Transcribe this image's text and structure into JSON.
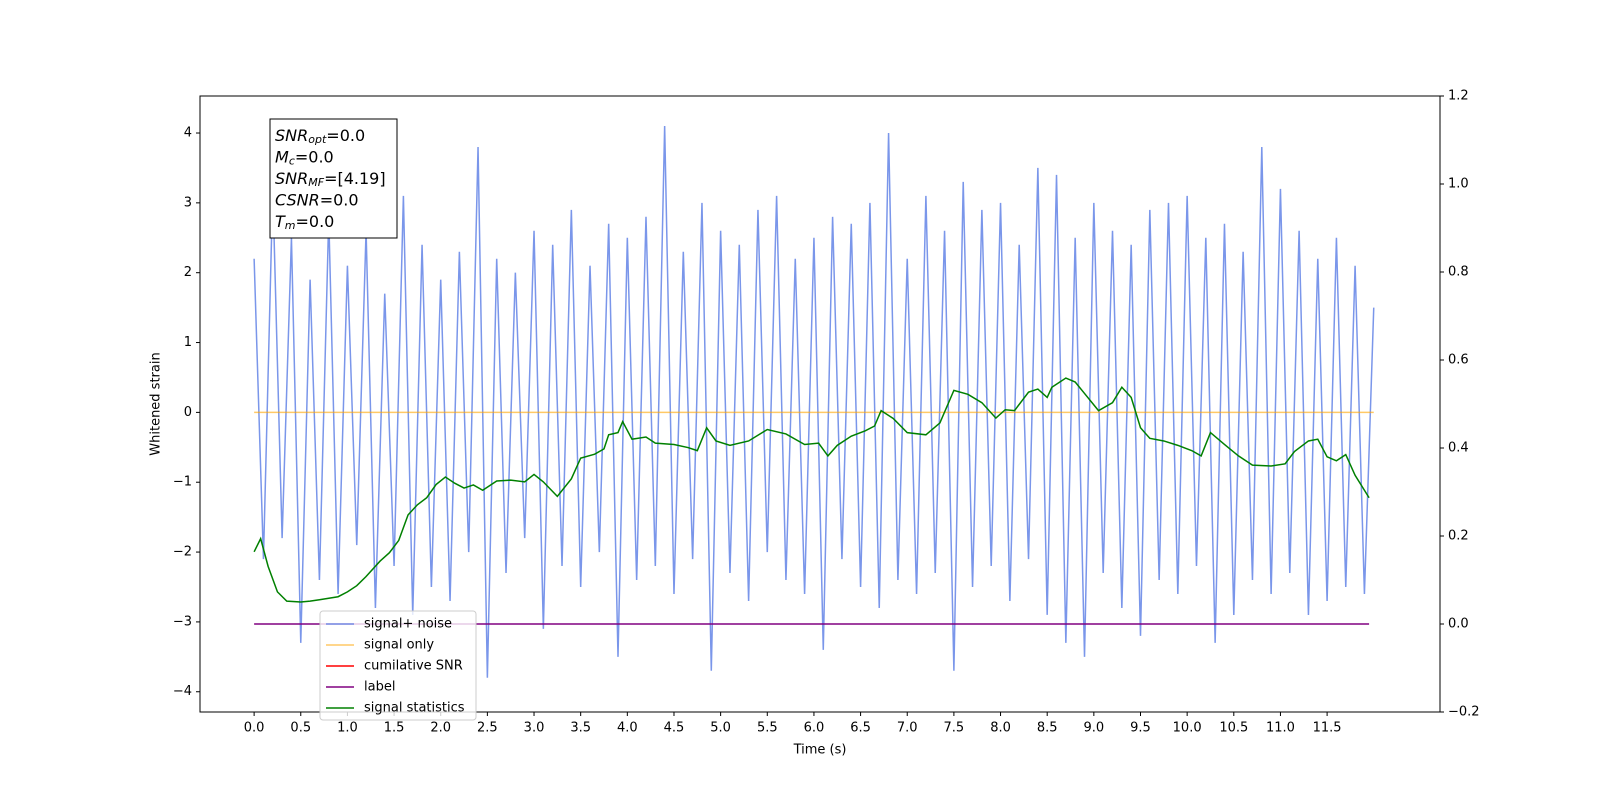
{
  "chart_data": {
    "type": "line",
    "xlabel": "Time (s)",
    "ylabel": "Whitened strain",
    "xlim": [
      -0.58,
      12.71
    ],
    "ylim": [
      -4.29,
      4.53
    ],
    "y2lim": [
      -0.2,
      1.2
    ],
    "xticks": [
      {
        "value": 0,
        "label": "0.0"
      },
      0.5,
      {
        "value": 1,
        "label": "1.0"
      },
      1.5,
      {
        "value": 2,
        "label": "2.0"
      },
      2.5,
      {
        "value": 3,
        "label": "3.0"
      },
      3.5,
      {
        "value": 4,
        "label": "4.0"
      },
      4.5,
      {
        "value": 5,
        "label": "5.0"
      },
      5.5,
      {
        "value": 6,
        "label": "6.0"
      },
      6.5,
      {
        "value": 7,
        "label": "7.0"
      },
      7.5,
      {
        "value": 8,
        "label": "8.0"
      },
      8.5,
      {
        "value": 9,
        "label": "9.0"
      },
      9.5,
      {
        "value": 10,
        "label": "10.0"
      },
      10.5,
      {
        "value": 11,
        "label": "11.0"
      },
      11.5
    ],
    "yticks": [
      {
        "value": -4,
        "label": "−4"
      },
      {
        "value": -3,
        "label": "−3"
      },
      {
        "value": -2,
        "label": "−2"
      },
      {
        "value": -1,
        "label": "−1"
      },
      0,
      1,
      2,
      3,
      4
    ],
    "y2ticks": [
      {
        "value": -0.2,
        "label": "−0.2"
      },
      {
        "value": 0,
        "label": "0.0"
      },
      0.2,
      0.4,
      0.6,
      0.8,
      {
        "value": 1,
        "label": "1.0"
      },
      1.2
    ],
    "annotations": [
      {
        "text": "SNR",
        "sub": "opt",
        "rest": "=0.0"
      },
      {
        "text": "M",
        "sub": "c",
        "rest": "=0.0"
      },
      {
        "text": "SNR",
        "sub": "MF",
        "rest": "=[4.19]"
      },
      {
        "text": "CSNR",
        "rest": "=0.0"
      },
      {
        "text": "T",
        "sub": "m",
        "rest": "=0.0"
      }
    ],
    "series": [
      {
        "name": "signal+ noise",
        "color": "#4169e1",
        "opacity": 0.7,
        "x": [
          0,
          0.1,
          0.2,
          0.3,
          0.4,
          0.5,
          0.6,
          0.7,
          0.8,
          0.9,
          1,
          1.1,
          1.2,
          1.3,
          1.4,
          1.5,
          1.6,
          1.7,
          1.8,
          1.9,
          2,
          2.1,
          2.2,
          2.3,
          2.4,
          2.5,
          2.6,
          2.7,
          2.8,
          2.9,
          3,
          3.1,
          3.2,
          3.3,
          3.4,
          3.5,
          3.6,
          3.7,
          3.8,
          3.9,
          4,
          4.1,
          4.2,
          4.3,
          4.4,
          4.5,
          4.6,
          4.7,
          4.8,
          4.9,
          5,
          5.1,
          5.2,
          5.3,
          5.4,
          5.5,
          5.6,
          5.7,
          5.8,
          5.9,
          6,
          6.1,
          6.2,
          6.3,
          6.4,
          6.5,
          6.6,
          6.7,
          6.8,
          6.9,
          7,
          7.1,
          7.2,
          7.3,
          7.4,
          7.5,
          7.6,
          7.7,
          7.8,
          7.9,
          8,
          8.1,
          8.2,
          8.3,
          8.4,
          8.5,
          8.6,
          8.7,
          8.8,
          8.9,
          9,
          9.1,
          9.2,
          9.3,
          9.4,
          9.5,
          9.6,
          9.7,
          9.8,
          9.9,
          10,
          10.1,
          10.2,
          10.3,
          10.4,
          10.5,
          10.6,
          10.7,
          10.8,
          10.9,
          11,
          11.1,
          11.2,
          11.3,
          11.4,
          11.5,
          11.6,
          11.7,
          11.8,
          11.9,
          12
        ],
        "values": [
          2.2,
          -2.1,
          3.2,
          -1.8,
          2.5,
          -3.3,
          1.9,
          -2.4,
          2.8,
          -2.6,
          2.1,
          -1.9,
          2.6,
          -2.8,
          1.7,
          -2.2,
          3.1,
          -2.9,
          2.4,
          -2.5,
          1.9,
          -2.7,
          2.3,
          -2.0,
          3.8,
          -3.8,
          2.2,
          -2.3,
          2.0,
          -1.8,
          2.6,
          -3.1,
          2.4,
          -2.2,
          2.9,
          -2.5,
          2.1,
          -2.0,
          2.7,
          -3.5,
          2.5,
          -2.4,
          2.8,
          -2.2,
          4.1,
          -2.6,
          2.3,
          -2.1,
          3.0,
          -3.7,
          2.6,
          -2.3,
          2.4,
          -2.7,
          2.9,
          -2.0,
          3.1,
          -2.4,
          2.2,
          -2.6,
          2.5,
          -3.4,
          2.8,
          -2.1,
          2.7,
          -2.5,
          3.0,
          -2.8,
          4.0,
          -2.4,
          2.2,
          -2.6,
          3.1,
          -2.3,
          2.6,
          -3.7,
          3.3,
          -2.5,
          2.9,
          -2.2,
          3.0,
          -2.7,
          2.4,
          -2.1,
          3.5,
          -2.9,
          3.4,
          -3.3,
          2.5,
          -3.5,
          3.0,
          -2.3,
          2.6,
          -2.8,
          2.4,
          -3.2,
          2.9,
          -2.4,
          3.0,
          -2.6,
          3.1,
          -2.2,
          2.5,
          -3.3,
          2.7,
          -2.9,
          2.3,
          -2.4,
          3.8,
          -2.6,
          3.2,
          -2.3,
          2.6,
          -2.9,
          2.2,
          -2.7,
          2.5,
          -2.5,
          2.1,
          -2.6,
          1.5
        ]
      },
      {
        "name": "signal only",
        "color": "#ffa500",
        "opacity": 0.6,
        "x": [
          0,
          12.0
        ],
        "values": [
          0,
          0
        ]
      },
      {
        "name": "cumilative SNR",
        "color": "#ff0000",
        "opacity": 1,
        "x": [],
        "values": []
      },
      {
        "name": "label",
        "color": "#800080",
        "opacity": 1,
        "axis": "y2",
        "x": [
          0,
          11.95
        ],
        "values": [
          0,
          0
        ]
      },
      {
        "name": "signal statistics",
        "color": "#008000",
        "opacity": 1,
        "axis": "y2",
        "x": [
          0,
          0.07,
          0.15,
          0.25,
          0.35,
          0.5,
          0.6,
          0.7,
          0.9,
          1.0,
          1.1,
          1.2,
          1.35,
          1.45,
          1.55,
          1.65,
          1.75,
          1.85,
          1.95,
          2.05,
          2.15,
          2.25,
          2.35,
          2.45,
          2.6,
          2.75,
          2.9,
          3.0,
          3.1,
          3.25,
          3.4,
          3.5,
          3.65,
          3.75,
          3.8,
          3.9,
          3.95,
          4.05,
          4.2,
          4.3,
          4.5,
          4.65,
          4.75,
          4.85,
          4.95,
          5.1,
          5.3,
          5.5,
          5.7,
          5.9,
          6.05,
          6.15,
          6.25,
          6.4,
          6.55,
          6.65,
          6.72,
          6.85,
          7.0,
          7.2,
          7.35,
          7.5,
          7.65,
          7.8,
          7.95,
          8.05,
          8.15,
          8.3,
          8.4,
          8.5,
          8.55,
          8.7,
          8.8,
          8.9,
          9.05,
          9.2,
          9.3,
          9.4,
          9.5,
          9.6,
          9.75,
          9.9,
          10.05,
          10.15,
          10.25,
          10.4,
          10.55,
          10.7,
          10.9,
          11.05,
          11.15,
          11.3,
          11.4,
          11.5,
          11.6,
          11.7,
          11.8,
          11.95
        ],
        "values": [
          0.164,
          0.194,
          0.131,
          0.073,
          0.052,
          0.05,
          0.052,
          0.055,
          0.062,
          0.073,
          0.087,
          0.108,
          0.143,
          0.162,
          0.19,
          0.248,
          0.271,
          0.287,
          0.317,
          0.334,
          0.32,
          0.309,
          0.316,
          0.304,
          0.325,
          0.327,
          0.323,
          0.34,
          0.323,
          0.29,
          0.33,
          0.377,
          0.386,
          0.398,
          0.43,
          0.435,
          0.46,
          0.42,
          0.425,
          0.411,
          0.408,
          0.401,
          0.394,
          0.446,
          0.416,
          0.406,
          0.416,
          0.442,
          0.432,
          0.408,
          0.411,
          0.382,
          0.406,
          0.427,
          0.439,
          0.45,
          0.485,
          0.467,
          0.435,
          0.43,
          0.457,
          0.531,
          0.522,
          0.503,
          0.468,
          0.487,
          0.485,
          0.527,
          0.534,
          0.515,
          0.538,
          0.559,
          0.55,
          0.524,
          0.485,
          0.503,
          0.538,
          0.515,
          0.446,
          0.422,
          0.416,
          0.406,
          0.394,
          0.382,
          0.435,
          0.408,
          0.382,
          0.361,
          0.359,
          0.364,
          0.392,
          0.416,
          0.42,
          0.38,
          0.371,
          0.385,
          0.338,
          0.287
        ]
      }
    ]
  }
}
